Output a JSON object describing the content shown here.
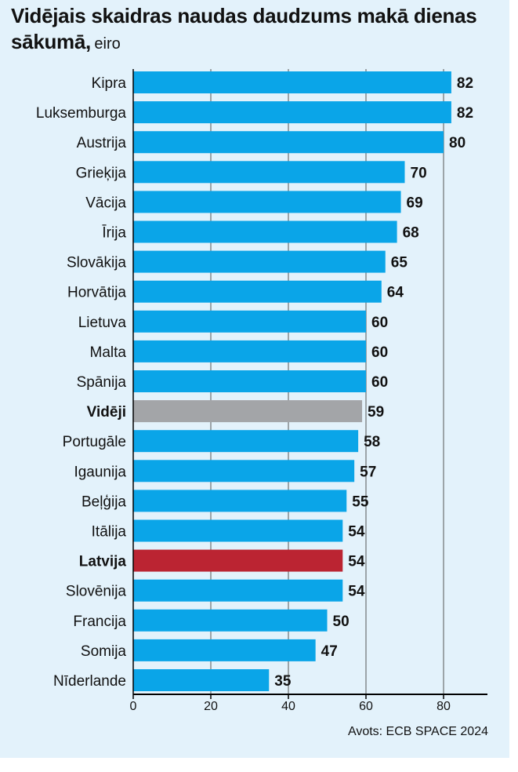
{
  "title": {
    "main": "Vidējais skaidras naudas daudzums makā dienas sākumā,",
    "unit": "eiro"
  },
  "source": "Avots: ECB SPACE 2024",
  "colors": {
    "background": "#e3f2fb",
    "bar_default": "#0aa5e8",
    "bar_average": "#a3a5a8",
    "bar_latvia": "#bb2432",
    "grid": "#555555",
    "text": "#111111"
  },
  "chart_data": {
    "type": "bar",
    "orientation": "horizontal",
    "title": "Vidējais skaidras naudas daudzums makā dienas sākumā, eiro",
    "xlabel": "",
    "ylabel": "",
    "xlim": [
      0,
      90
    ],
    "xticks": [
      0,
      20,
      40,
      60,
      80
    ],
    "grid": true,
    "categories": [
      "Kipra",
      "Luksemburga",
      "Austrija",
      "Grieķija",
      "Vācija",
      "Īrija",
      "Slovākija",
      "Horvātija",
      "Lietuva",
      "Malta",
      "Spānija",
      "Vidēji",
      "Portugāle",
      "Igaunija",
      "Beļģija",
      "Itālija",
      "Latvija",
      "Slovēnija",
      "Francija",
      "Somija",
      "Nīderlande"
    ],
    "values": [
      82,
      82,
      80,
      70,
      69,
      68,
      65,
      64,
      60,
      60,
      60,
      59,
      58,
      57,
      55,
      54,
      54,
      54,
      50,
      47,
      35
    ],
    "highlight": {
      "Vidēji": "average",
      "Latvija": "latvia"
    }
  }
}
